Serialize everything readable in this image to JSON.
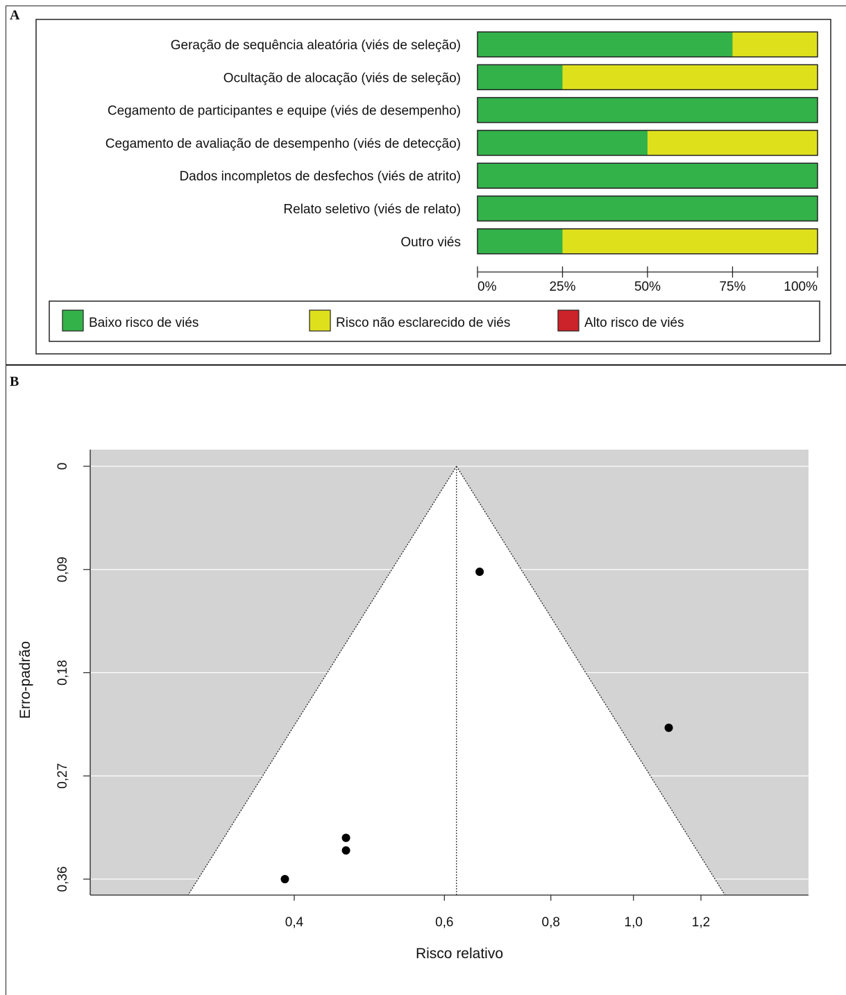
{
  "panels": {
    "a": {
      "tag": "A"
    },
    "b": {
      "tag": "B"
    }
  },
  "chart_data": [
    {
      "type": "bar",
      "orientation": "horizontal",
      "stacked": true,
      "categories": [
        "Geração de sequência aleatória (viés de seleção)",
        "Ocultação de alocação (viés de seleção)",
        "Cegamento de participantes e equipe (viés de desempenho)",
        "Cegamento de avaliação de desempenho (viés de detecção)",
        "Dados incompletos de desfechos (viés de atrito)",
        "Relato seletivo (viés de relato)",
        "Outro viés"
      ],
      "series": [
        {
          "name": "Baixo risco de viés",
          "color": "#33b24a",
          "values": [
            75,
            25,
            100,
            50,
            100,
            100,
            25
          ]
        },
        {
          "name": "Risco não esclarecido de viés",
          "color": "#dfe01c",
          "values": [
            25,
            75,
            0,
            50,
            0,
            0,
            75
          ]
        },
        {
          "name": "Alto risco de viés",
          "color": "#cc2229",
          "values": [
            0,
            0,
            0,
            0,
            0,
            0,
            0
          ]
        }
      ],
      "xlim": [
        0,
        100
      ],
      "x_ticks": [
        0,
        25,
        50,
        75,
        100
      ],
      "x_tick_labels": [
        "0%",
        "25%",
        "50%",
        "75%",
        "100%"
      ],
      "legend": "bottom"
    },
    {
      "type": "scatter",
      "subtype": "funnel plot",
      "xlabel": "Risco relativo",
      "ylabel": "Erro-padrão",
      "x_scale": "log",
      "y_reversed": true,
      "ylim": [
        0,
        0.37
      ],
      "y_ticks": [
        0,
        0.09,
        0.18,
        0.27,
        0.36
      ],
      "y_tick_labels": [
        "0",
        "0,09",
        "0,18",
        "0,27",
        "0,36"
      ],
      "x_ticks": [
        0.4,
        0.6,
        0.8,
        1.0,
        1.2
      ],
      "x_tick_labels": [
        "0,4",
        "0,6",
        "0,8",
        "1,0",
        "1,2"
      ],
      "pooled_estimate": 0.62,
      "points": [
        {
          "x": 0.66,
          "y": 0.092
        },
        {
          "x": 1.1,
          "y": 0.228
        },
        {
          "x": 0.46,
          "y": 0.324
        },
        {
          "x": 0.46,
          "y": 0.335
        },
        {
          "x": 0.39,
          "y": 0.36
        }
      ],
      "grid": "horizontal",
      "background": "#d3d3d3"
    }
  ]
}
